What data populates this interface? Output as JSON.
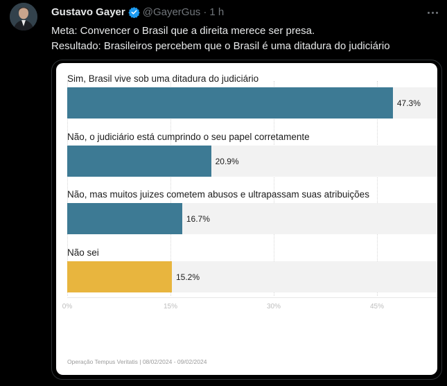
{
  "tweet": {
    "author_name": "Gustavo Gayer",
    "handle": "@GayerGus",
    "separator": "·",
    "time": "1 h",
    "line1": "Meta: Convencer o Brasil que a direita merece ser presa.",
    "line2": "Resultado: Brasileiros percebem que o Brasil é uma ditadura do judiciário"
  },
  "colors": {
    "blue": "#3d7a94",
    "yellow": "#e8b53e",
    "verified": "#1d9bf0"
  },
  "chart_data": {
    "type": "bar",
    "orientation": "horizontal",
    "categories": [
      "Sim, Brasil vive sob uma ditadura do judiciário",
      "Não, o judiciário está cumprindo o seu papel corretamente",
      "Não, mas muitos juizes cometem abusos e ultrapassam suas atribuições",
      "Não sei"
    ],
    "values": [
      47.3,
      20.9,
      16.7,
      15.2
    ],
    "value_labels": [
      "47.3%",
      "20.9%",
      "16.7%",
      "15.2%"
    ],
    "bar_colors": [
      "#3d7a94",
      "#3d7a94",
      "#3d7a94",
      "#e8b53e"
    ],
    "xlim": [
      0,
      53
    ],
    "ticks": [
      0,
      15,
      30,
      45
    ],
    "tick_labels": [
      "0%",
      "15%",
      "30%",
      "45%"
    ],
    "source": "Operação Tempus Veritatis | 08/02/2024 - 09/02/2024"
  }
}
